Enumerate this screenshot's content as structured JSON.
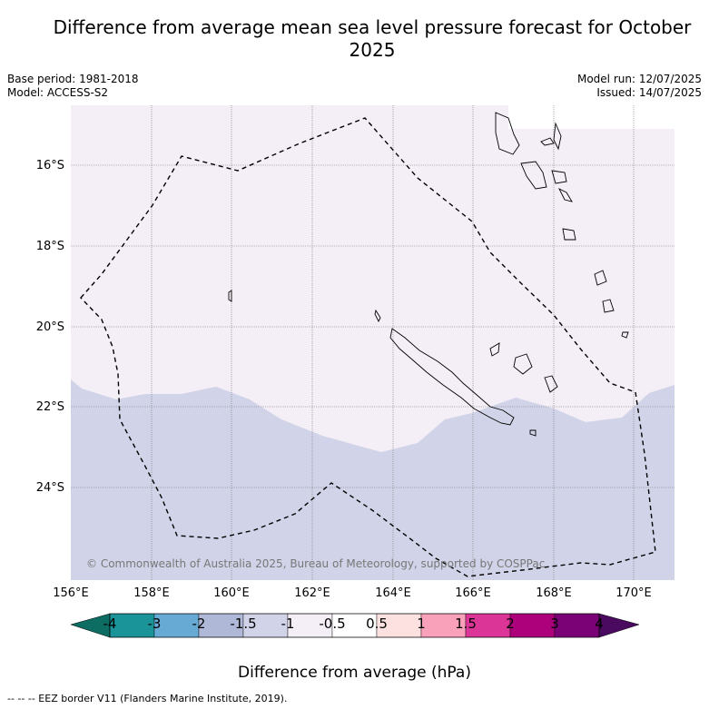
{
  "title": "Difference from average mean sea level pressure forecast for October 2025",
  "meta": {
    "base_period": "Base period: 1981-2018",
    "model": "Model: ACCESS-S2",
    "model_run": "Model run: 12/07/2025",
    "issued": "Issued: 14/07/2025"
  },
  "map": {
    "lon_range": [
      156,
      171
    ],
    "lat_range": [
      -26.3,
      -14.4
    ],
    "lat_ticks": [
      "16°S",
      "18°S",
      "20°S",
      "22°S",
      "24°S"
    ],
    "lon_ticks": [
      "156°E",
      "158°E",
      "160°E",
      "162°E",
      "164°E",
      "166°E",
      "168°E",
      "170°E"
    ],
    "fields": [
      {
        "range": "-1 to -0.5",
        "color": "#f4eef6"
      },
      {
        "range": "-1.5 to -1",
        "color": "#d1d3e8"
      }
    ],
    "copyright": "© Commonwealth of Australia 2025, Bureau of Meteorology, supported by COSPPac"
  },
  "colorbar": {
    "ticks": [
      "-4",
      "-3",
      "-2",
      "-1.5",
      "-1",
      "-0.5",
      "0.5",
      "1",
      "1.5",
      "2",
      "3",
      "4"
    ],
    "colors": [
      "#1a9399",
      "#67aad4",
      "#afb8d6",
      "#d1d3e8",
      "#f4eef6",
      "#ffffff",
      "#fde0e0",
      "#f9a0bb",
      "#dc3598",
      "#ad017c",
      "#7b0177"
    ],
    "under_color": "#0e6d63",
    "over_color": "#4a0a5f",
    "label": "Difference from average (hPa)"
  },
  "footnote": "-- -- -- EEZ border V11 (Flanders Marine Institute, 2019)."
}
